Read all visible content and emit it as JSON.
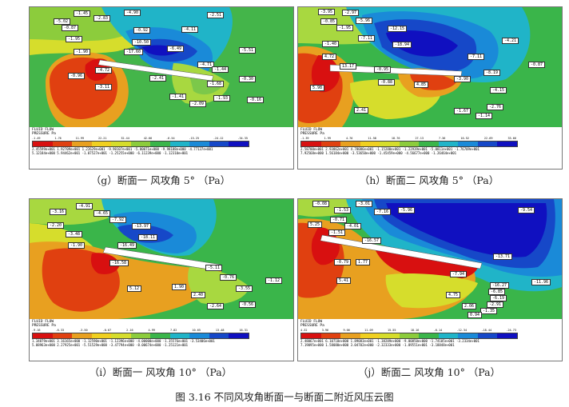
{
  "figure_caption": "图 3.16  不同风攻角断面一与断面二附近风压云图",
  "panels": [
    {
      "id": "g",
      "caption": "（g）断面一  风攻角 5°  （Pa）",
      "header": [
        "FLUID FLOW",
        "PRESSURE   Pa"
      ],
      "legend_ticks": [
        "-1.49",
        "1.76",
        "11.99",
        "22.21",
        "32.44",
        "42.66",
        "-6.54",
        "-15.25",
        "-24.12",
        "-34.35"
      ],
      "legend_values": [
        "2.45599e+001    1.92709e+001    1.22629e+001   -9.90107e+001   -5.80071e+000   -9.98188e+000   -4.77137e+001",
        "5.12184e+000    5.94462e+001   -1.07527e+001   -1.25255e+000   -6.11239e+000   -1.12310e+001"
      ],
      "labels": [
        "-1.45",
        "-2.83",
        "-4.90",
        "-2.51",
        "-0.92",
        "-0.87",
        "-5.02",
        "-4.11",
        "-1.95",
        "-10.50",
        "-6.49",
        "-1.90",
        "-17.60",
        "-5.51",
        "-4.72",
        "-4.71",
        "-0.96",
        "-1.44",
        "-2.41",
        "-1.68",
        "-0.30",
        "-3.11",
        "-1.41",
        "-1.93",
        "-2.09",
        "-0.16"
      ]
    },
    {
      "id": "h",
      "caption": "（h）断面二  风攻角 5°  （Pa）",
      "header": [
        "FLUID FLOW",
        "PRESSURE   Pa"
      ],
      "legend_ticks": [
        "-1.39",
        "1.99",
        "4.76",
        "11.58",
        "18.76",
        "27.13",
        "7.36",
        "16.52",
        "22.69",
        "33.66"
      ],
      "legend_values": [
        "2.58700e+001    2.93862e+001    4.78086e+001   -1.15280e+001   -1.22939e+001   -5.0811e+001   -1.76709e+001",
        "7.92568e+000    1.56184e+000   -3.53650e+000   -1.45459e+000   -4.56677e+000   -1.26464e+001"
      ],
      "labels": [
        "-3.95",
        "-2.97",
        "-5.96",
        "-0.85",
        "-1.95",
        "-12.15",
        "-7.11",
        "-1.40",
        "-18.94",
        "-4.21",
        "4.72",
        "-7.11",
        "-0.87",
        "13.17",
        "-0.95",
        "5.98",
        "-8.19",
        "-3.90",
        "4.85",
        "-4.15",
        "-0.88",
        "-2.76",
        "2.41",
        "-1.67",
        "-1.14"
      ]
    },
    {
      "id": "i",
      "caption": "（i）断面一  风攻角 10°  （Pa）",
      "header": [
        "FLUID FLOW",
        "PRESSURE   Pa"
      ],
      "legend_ticks": [
        "-9.16",
        "-6.33",
        "-3.50",
        "-0.67",
        "2.16",
        "4.99",
        "7.82",
        "10.65",
        "13.48",
        "16.31"
      ],
      "legend_values": [
        "1.34879e+001    3.16165e+000   -1.12590e+001   -1.12396e+000   -4.00000e+000   -1.35576e+001   -3.53406e+001",
        "5.08963e+000    2.27925e+001   -5.51529e+000   -3.47794e+000   -8.00674e+000   -1.25121e+001"
      ],
      "labels": [
        "-3.16",
        "-4.91",
        "-4.65",
        "-7.92",
        "-2.20",
        "-3.48",
        "-13.97",
        "-1.90",
        "-18.11",
        "-16.49",
        "-16.58",
        "-5.11",
        "-0.76",
        "5.12",
        "1.90",
        "-3.55",
        "-1.12",
        "2.40",
        "-0.56",
        "-2.64"
      ]
    },
    {
      "id": "j",
      "caption": "（j）断面二  风攻角 10°  （Pa）",
      "header": [
        "FLUID FLOW",
        "PRESSURE   Pa"
      ],
      "legend_ticks": [
        "4.32",
        "3.96",
        "9.06",
        "11.09",
        "15.55",
        "18.16",
        "-6.14",
        "-12.34",
        "-18.44",
        "-24.73"
      ],
      "legend_values": [
        "2.48067e+001    6.10718e+000    1.89083e+001   -1.38289e+000   -9.00850e+000   -1.74105e+001   -3.2334e+001",
        "7.19095e+000    1.58080e+000    3.04702e+000   -2.32333e+000   -1.89551e+001   -3.18848e+001"
      ],
      "labels": [
        "-0.08",
        "-3.01",
        "-1.53",
        "-7.16",
        "-5.96",
        "-9.54",
        "-0.71",
        "-4.01",
        "-1.51",
        "-16.57",
        "5.25",
        "-13.71",
        "-0.79",
        "1.77",
        "-7.94",
        "-16.27",
        "-11.96",
        "5.41",
        "-6.85",
        "-6.19",
        "-2.91",
        "4.75",
        "2.06",
        "-1.35",
        "0.94"
      ]
    }
  ]
}
